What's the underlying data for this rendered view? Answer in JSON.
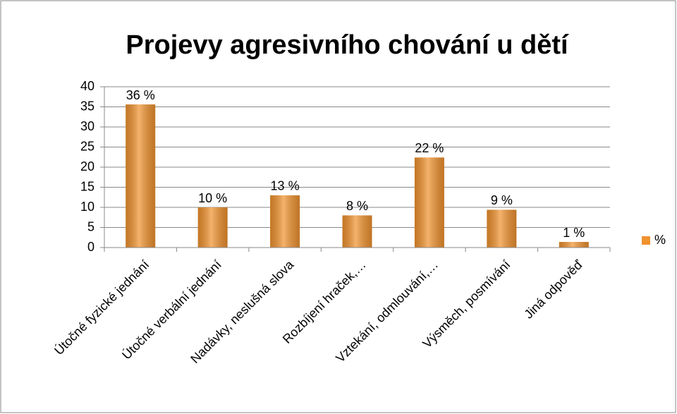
{
  "chart_data": {
    "type": "bar",
    "title": "Projevy agresivního chování u dětí",
    "categories": [
      "Útočné fyzické jednání",
      "Útočné verbální jednání",
      "Nadávky, neslušná slova",
      "Rozbíjení hraček,…",
      "Vztekání, odmlouvání,…",
      "Výsměch, posmívání",
      "Jiná odpověď"
    ],
    "series": [
      {
        "name": "%",
        "color": "#f0922e",
        "values": [
          35.6,
          10,
          13,
          8,
          22.4,
          9.4,
          1.4
        ],
        "value_labels": [
          "36 %",
          "10 %",
          "13 %",
          "8 %",
          "22 %",
          "9 %",
          "1 %"
        ]
      }
    ],
    "ylim": [
      0,
      40
    ],
    "yticks": [
      0,
      5,
      10,
      15,
      20,
      25,
      30,
      35,
      40
    ],
    "grid": true,
    "legend": "right"
  }
}
